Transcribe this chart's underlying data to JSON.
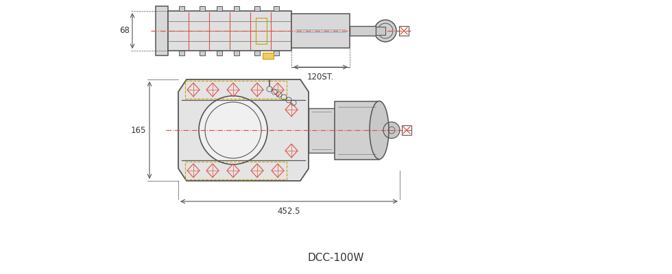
{
  "bg_color": "#ffffff",
  "line_color": "#888888",
  "dark_line": "#555555",
  "red_dash": "#e05040",
  "orange_dash": "#e07020",
  "yellow_dot": "#c8a000",
  "blue_fill": "#a8c8e8",
  "title": "DCC-100W",
  "dim_68": "68",
  "dim_165": "165",
  "dim_120st": "120ST.",
  "dim_452": "452.5"
}
